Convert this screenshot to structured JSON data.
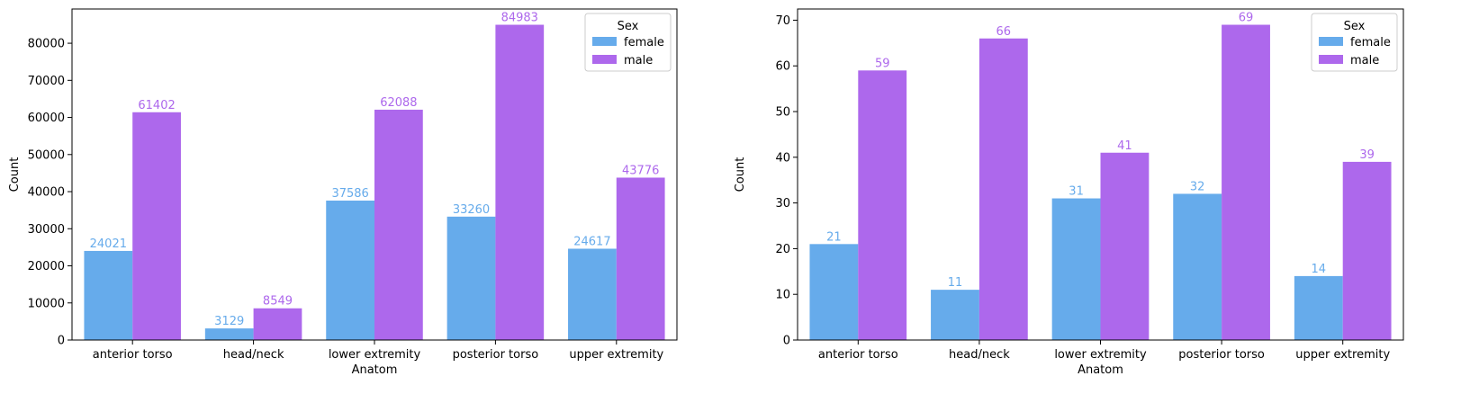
{
  "colors": {
    "female": "#66abeb",
    "male": "#ad68ec",
    "axis": "#000000"
  },
  "chart_data": [
    {
      "type": "bar",
      "title": "",
      "xlabel": "Anatom",
      "ylabel": "Count",
      "categories": [
        "anterior torso",
        "head/neck",
        "lower extremity",
        "posterior torso",
        "upper extremity"
      ],
      "series": [
        {
          "name": "female",
          "values": [
            24021,
            3129,
            37586,
            33260,
            24617
          ]
        },
        {
          "name": "male",
          "values": [
            61402,
            8549,
            62088,
            84983,
            43776
          ]
        }
      ],
      "ylim": [
        0,
        89232
      ],
      "yticks": [
        0,
        10000,
        20000,
        30000,
        40000,
        50000,
        60000,
        70000,
        80000
      ],
      "legend": {
        "title": "Sex",
        "placement": "upper right"
      },
      "grid": false
    },
    {
      "type": "bar",
      "title": "",
      "xlabel": "Anatom",
      "ylabel": "Count",
      "categories": [
        "anterior torso",
        "head/neck",
        "lower extremity",
        "posterior torso",
        "upper extremity"
      ],
      "series": [
        {
          "name": "female",
          "values": [
            21,
            11,
            31,
            32,
            14
          ]
        },
        {
          "name": "male",
          "values": [
            59,
            66,
            41,
            69,
            39
          ]
        }
      ],
      "ylim": [
        0,
        72.45
      ],
      "yticks": [
        0,
        10,
        20,
        30,
        40,
        50,
        60,
        70
      ],
      "legend": {
        "title": "Sex",
        "placement": "upper right"
      },
      "grid": false
    }
  ]
}
